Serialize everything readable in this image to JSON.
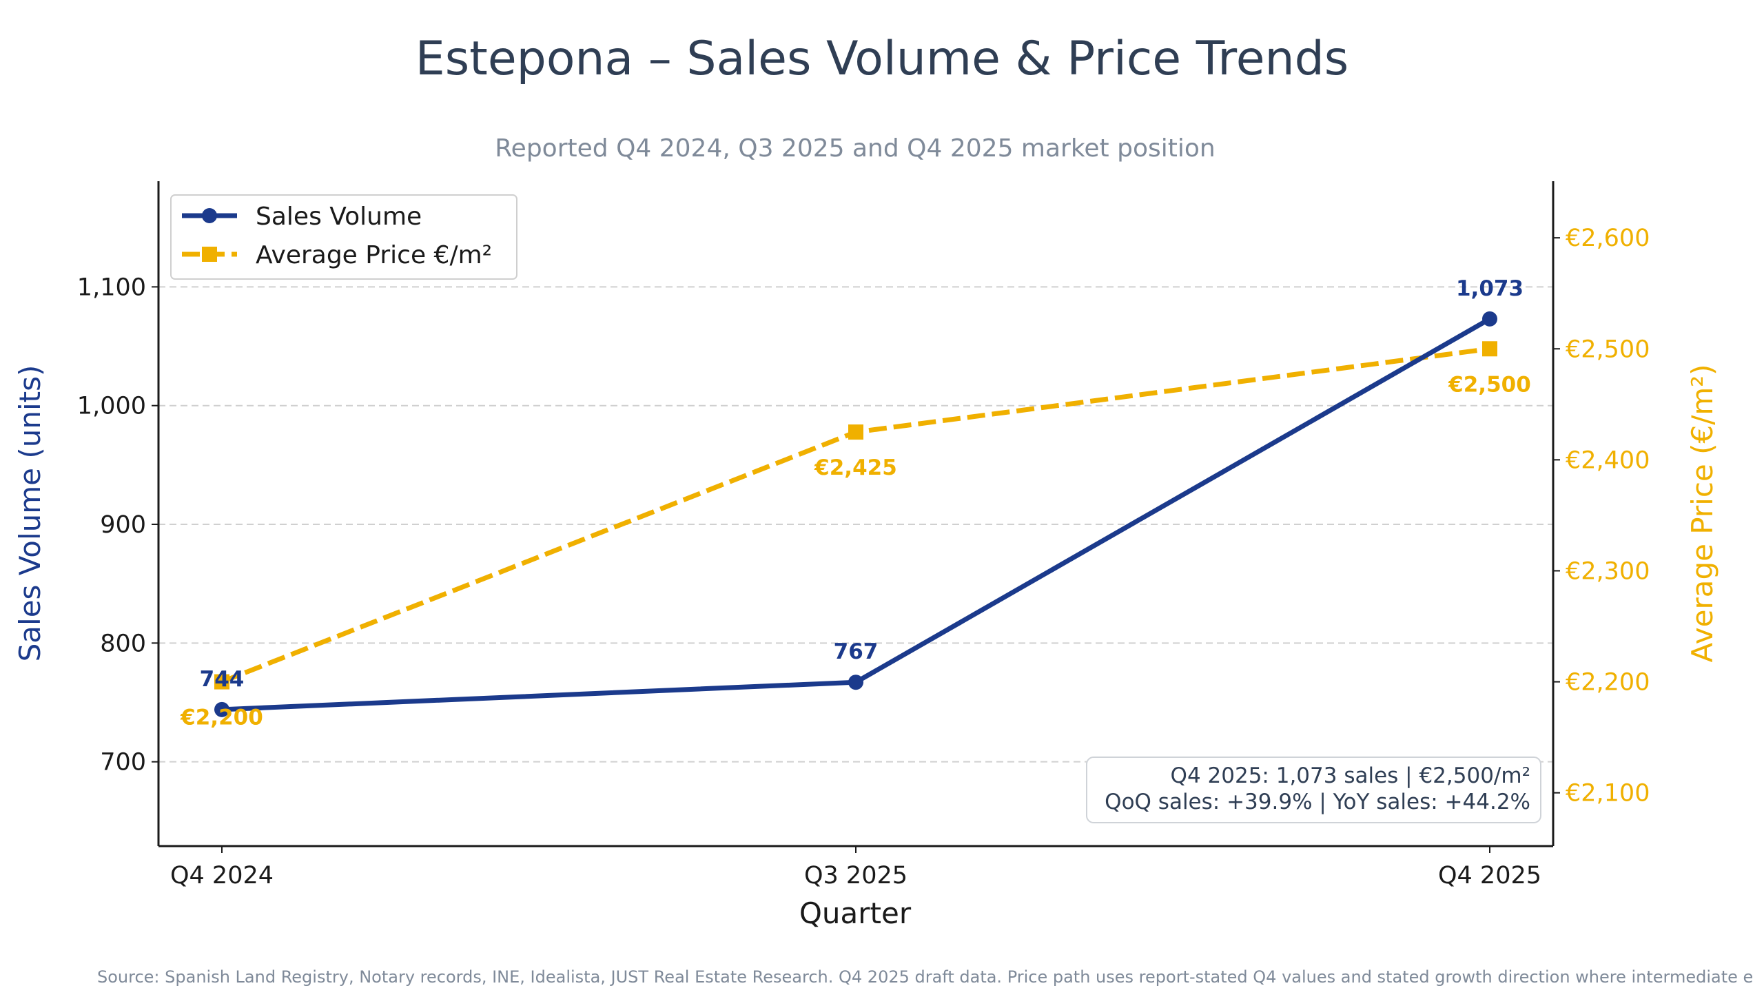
{
  "colors": {
    "sales": "#1b3a8c",
    "price": "#f0b000",
    "title": "#2f3e54",
    "subtitle": "#7f8a99",
    "grid": "#d0d0d0",
    "axis": "#1a1a1a"
  },
  "chart_data": {
    "type": "line",
    "title": "Estepona – Sales Volume & Price Trends",
    "subtitle": "Reported Q4 2024, Q3 2025 and Q4 2025 market position",
    "xlabel": "Quarter",
    "ylabel": "Sales Volume (units)",
    "ylabel_right": "Average Price (€/m²)",
    "categories": [
      "Q4 2024",
      "Q3 2025",
      "Q4 2025"
    ],
    "xlim": [
      -0.1,
      2.1
    ],
    "ylim": [
      629,
      1189
    ],
    "ylim_right": [
      2052,
      2651
    ],
    "yticks": [
      700,
      800,
      900,
      1000,
      1100
    ],
    "ytick_labels": [
      "700",
      "800",
      "900",
      "1,000",
      "1,100"
    ],
    "yticks_right": [
      2100,
      2200,
      2300,
      2400,
      2500,
      2600
    ],
    "ytick_labels_right": [
      "€2,100",
      "€2,200",
      "€2,300",
      "€2,400",
      "€2,500",
      "€2,600"
    ],
    "grid": "horizontal dashed",
    "legend_placement": "top-left",
    "series": [
      {
        "name": "Sales Volume",
        "axis": "left",
        "marker": "circle",
        "style": "solid",
        "values": [
          744,
          767,
          1073
        ],
        "labels": [
          "744",
          "767",
          "1,073"
        ]
      },
      {
        "name": "Average Price €/m²",
        "axis": "right",
        "marker": "square",
        "style": "dashed",
        "values": [
          2200,
          2425,
          2500
        ],
        "labels": [
          "€2,200",
          "€2,425",
          "€2,500"
        ]
      }
    ],
    "annotation": [
      "Q4 2025: 1,073 sales | €2,500/m²",
      "QoQ sales: +39.9% | YoY sales: +44.2%"
    ]
  },
  "footer": "Source: Spanish Land Registry, Notary records, INE, Idealista, JUST Real Estate Research. Q4 2025 draft data. Price path uses report-stated Q4 values and stated growth direction where intermediate e"
}
